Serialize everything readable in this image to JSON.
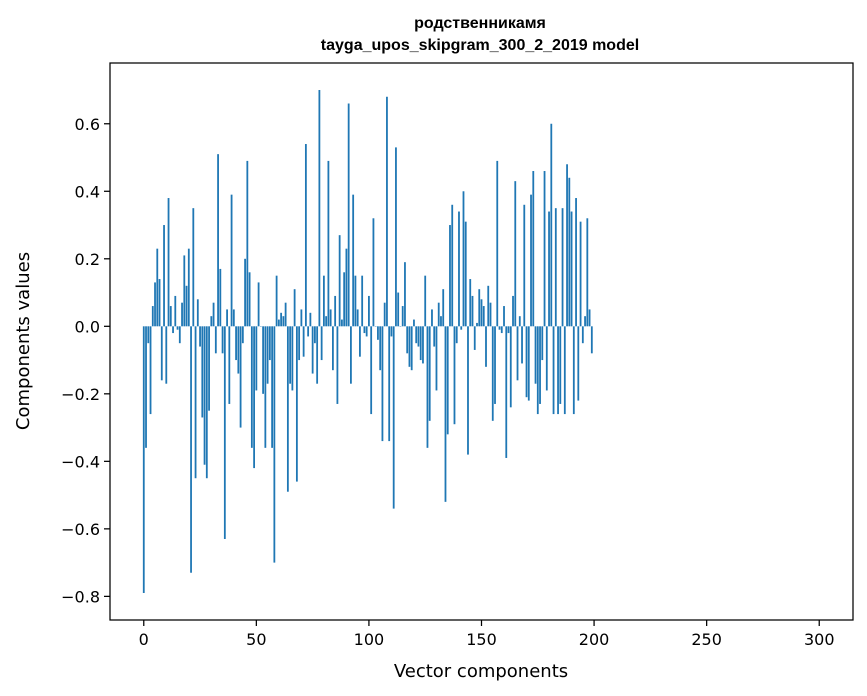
{
  "chart_data": {
    "type": "bar",
    "title": [
      "родственникамя",
      "tayga_upos_skipgram_300_2_2019 model"
    ],
    "xlabel": "Vector components",
    "ylabel": "Components values",
    "xlim": [
      -15,
      315
    ],
    "ylim": [
      -0.87,
      0.78
    ],
    "xticks": [
      0,
      50,
      100,
      150,
      200,
      250,
      300
    ],
    "yticks": [
      -0.8,
      -0.6,
      -0.4,
      -0.2,
      0.0,
      0.2,
      0.4,
      0.6
    ],
    "ytick_labels": [
      "−0.8",
      "−0.6",
      "−0.4",
      "−0.2",
      "0.0",
      "0.2",
      "0.4",
      "0.6"
    ],
    "bar_color": "#1f77b4",
    "values": [
      -0.79,
      -0.36,
      -0.05,
      -0.26,
      0.06,
      0.13,
      0.23,
      0.14,
      -0.16,
      0.3,
      -0.17,
      0.38,
      0.06,
      -0.02,
      0.09,
      -0.01,
      -0.05,
      0.07,
      0.21,
      0.12,
      0.23,
      -0.73,
      0.35,
      -0.45,
      0.08,
      -0.06,
      -0.27,
      -0.41,
      -0.45,
      -0.25,
      0.03,
      0.07,
      -0.08,
      0.51,
      0.17,
      -0.08,
      -0.63,
      0.05,
      -0.23,
      0.39,
      0.05,
      -0.1,
      -0.14,
      -0.3,
      -0.05,
      0.2,
      0.49,
      0.16,
      -0.36,
      -0.42,
      -0.19,
      0.13,
      0.0,
      -0.2,
      -0.36,
      -0.17,
      -0.1,
      -0.36,
      -0.7,
      0.15,
      0.02,
      0.04,
      0.03,
      0.07,
      -0.49,
      -0.17,
      -0.19,
      0.11,
      -0.46,
      -0.1,
      0.05,
      -0.09,
      0.54,
      -0.03,
      0.04,
      -0.14,
      -0.05,
      -0.17,
      0.7,
      -0.1,
      0.15,
      0.03,
      0.49,
      0.05,
      -0.13,
      0.09,
      -0.23,
      0.27,
      0.02,
      0.16,
      0.23,
      0.66,
      -0.17,
      0.39,
      0.15,
      0.05,
      -0.09,
      0.15,
      -0.02,
      -0.03,
      0.09,
      -0.26,
      0.32,
      0.0,
      -0.04,
      -0.13,
      -0.34,
      0.07,
      0.68,
      -0.34,
      -0.03,
      -0.54,
      0.53,
      0.1,
      0.0,
      0.06,
      0.19,
      -0.08,
      -0.12,
      -0.13,
      0.02,
      -0.05,
      -0.06,
      -0.1,
      -0.11,
      0.15,
      -0.36,
      -0.28,
      0.05,
      -0.06,
      -0.19,
      0.07,
      0.03,
      0.11,
      -0.52,
      -0.32,
      0.3,
      0.36,
      -0.29,
      -0.05,
      0.34,
      -0.01,
      0.4,
      0.31,
      -0.38,
      0.14,
      0.09,
      -0.07,
      0.01,
      0.11,
      0.08,
      0.06,
      -0.12,
      0.12,
      0.07,
      -0.28,
      -0.23,
      0.49,
      -0.01,
      -0.02,
      0.06,
      -0.39,
      -0.02,
      -0.24,
      0.09,
      0.43,
      -0.16,
      0.03,
      -0.11,
      0.36,
      -0.21,
      -0.22,
      0.39,
      0.46,
      -0.17,
      -0.26,
      -0.23,
      -0.1,
      0.46,
      -0.19,
      0.34,
      0.6,
      -0.26,
      0.35,
      -0.26,
      -0.23,
      0.35,
      -0.26,
      0.48,
      0.44,
      0.34,
      -0.26,
      0.38,
      -0.22,
      0.31,
      -0.05,
      0.03,
      0.32,
      0.05,
      -0.08
    ]
  }
}
